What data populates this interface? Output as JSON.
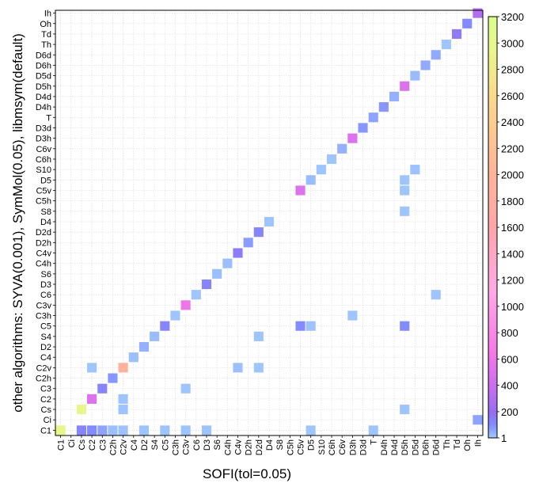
{
  "chart_data": {
    "type": "heatmap",
    "xlabel": "SOFI(tol=0.05)",
    "ylabel": "other algorithms: SYVA(0.001), SymMol(0.05), libmsym(default)",
    "categories": [
      "C1",
      "Ci",
      "Cs",
      "C2",
      "C3",
      "C2h",
      "C2v",
      "C4",
      "D2",
      "S4",
      "C5",
      "C3h",
      "C3v",
      "C6",
      "D3",
      "S6",
      "C4h",
      "C4v",
      "D2h",
      "D2d",
      "D4",
      "S8",
      "C5h",
      "C5v",
      "D5",
      "S10",
      "C6h",
      "C6v",
      "D3h",
      "D3d",
      "T",
      "D4h",
      "D4d",
      "D5h",
      "D5d",
      "D6h",
      "D6d",
      "Th",
      "Td",
      "Oh",
      "Ih"
    ],
    "colorbar": {
      "min": 1,
      "max": 3200,
      "ticks": [
        1,
        200,
        400,
        600,
        800,
        1000,
        1200,
        1400,
        1600,
        1800,
        2000,
        2200,
        2400,
        2600,
        2800,
        3000,
        3200
      ]
    },
    "grid": true,
    "cells": [
      {
        "x": "C1",
        "y": "C1",
        "value": 3000
      },
      {
        "x": "Cs",
        "y": "C1",
        "value": 120
      },
      {
        "x": "C2",
        "y": "C1",
        "value": 100
      },
      {
        "x": "C3",
        "y": "C1",
        "value": 60
      },
      {
        "x": "C2h",
        "y": "C1",
        "value": 15
      },
      {
        "x": "C2v",
        "y": "C1",
        "value": 10
      },
      {
        "x": "D2",
        "y": "C1",
        "value": 8
      },
      {
        "x": "C5",
        "y": "C1",
        "value": 8
      },
      {
        "x": "C3v",
        "y": "C1",
        "value": 8
      },
      {
        "x": "D3",
        "y": "C1",
        "value": 8
      },
      {
        "x": "D5",
        "y": "C1",
        "value": 5
      },
      {
        "x": "T",
        "y": "C1",
        "value": 5
      },
      {
        "x": "Ih",
        "y": "Ci",
        "value": 60
      },
      {
        "x": "C2v",
        "y": "Cs",
        "value": 8
      },
      {
        "x": "D5h",
        "y": "Cs",
        "value": 5
      },
      {
        "x": "Cs",
        "y": "Cs",
        "value": 3000
      },
      {
        "x": "C2",
        "y": "C2",
        "value": 500
      },
      {
        "x": "C2v",
        "y": "C2",
        "value": 8
      },
      {
        "x": "C3",
        "y": "C3",
        "value": 120
      },
      {
        "x": "C3v",
        "y": "C3",
        "value": 5
      },
      {
        "x": "C2h",
        "y": "C2h",
        "value": 80
      },
      {
        "x": "C2",
        "y": "C2v",
        "value": 5
      },
      {
        "x": "C2v",
        "y": "C2v",
        "value": 1900
      },
      {
        "x": "C4v",
        "y": "C2v",
        "value": 15
      },
      {
        "x": "D2d",
        "y": "C2v",
        "value": 5
      },
      {
        "x": "C4",
        "y": "C4",
        "value": 15
      },
      {
        "x": "D2",
        "y": "D2",
        "value": 40
      },
      {
        "x": "S4",
        "y": "S4",
        "value": 20
      },
      {
        "x": "D2d",
        "y": "S4",
        "value": 5
      },
      {
        "x": "C5",
        "y": "C5",
        "value": 120
      },
      {
        "x": "C5v",
        "y": "C5",
        "value": 100
      },
      {
        "x": "D5",
        "y": "C5",
        "value": 10
      },
      {
        "x": "D5h",
        "y": "C5",
        "value": 100
      },
      {
        "x": "C3h",
        "y": "C3h",
        "value": 5
      },
      {
        "x": "D3h",
        "y": "C3h",
        "value": 5
      },
      {
        "x": "C3v",
        "y": "C3v",
        "value": 600
      },
      {
        "x": "C6",
        "y": "C6",
        "value": 5
      },
      {
        "x": "D6d",
        "y": "C6",
        "value": 5
      },
      {
        "x": "D3",
        "y": "D3",
        "value": 120
      },
      {
        "x": "S6",
        "y": "S6",
        "value": 15
      },
      {
        "x": "C4h",
        "y": "C4h",
        "value": 15
      },
      {
        "x": "C4v",
        "y": "C4v",
        "value": 150
      },
      {
        "x": "D2h",
        "y": "D2h",
        "value": 70
      },
      {
        "x": "D2d",
        "y": "D2d",
        "value": 120
      },
      {
        "x": "D4",
        "y": "D4",
        "value": 5
      },
      {
        "x": "D5h",
        "y": "S8",
        "value": 5
      },
      {
        "x": "D5h",
        "y": "C5v",
        "value": 5
      },
      {
        "x": "C5v",
        "y": "C5v",
        "value": 500
      },
      {
        "x": "D5",
        "y": "D5",
        "value": 20
      },
      {
        "x": "D5h",
        "y": "D5",
        "value": 5
      },
      {
        "x": "S10",
        "y": "S10",
        "value": 5
      },
      {
        "x": "D5d",
        "y": "S10",
        "value": 10
      },
      {
        "x": "C6h",
        "y": "C6h",
        "value": 5
      },
      {
        "x": "C6v",
        "y": "C6v",
        "value": 40
      },
      {
        "x": "D3h",
        "y": "D3h",
        "value": 500
      },
      {
        "x": "D3d",
        "y": "D3d",
        "value": 80
      },
      {
        "x": "T",
        "y": "T",
        "value": 60
      },
      {
        "x": "D4h",
        "y": "D4h",
        "value": 80
      },
      {
        "x": "D4d",
        "y": "D4d",
        "value": 40
      },
      {
        "x": "D5h",
        "y": "D5h",
        "value": 500
      },
      {
        "x": "D5d",
        "y": "D5d",
        "value": 20
      },
      {
        "x": "D6h",
        "y": "D6h",
        "value": 50
      },
      {
        "x": "D6d",
        "y": "D6d",
        "value": 50
      },
      {
        "x": "Th",
        "y": "Th",
        "value": 5
      },
      {
        "x": "Td",
        "y": "Td",
        "value": 150
      },
      {
        "x": "Oh",
        "y": "Oh",
        "value": 100
      },
      {
        "x": "Ih",
        "y": "Ih",
        "value": 300
      }
    ]
  }
}
